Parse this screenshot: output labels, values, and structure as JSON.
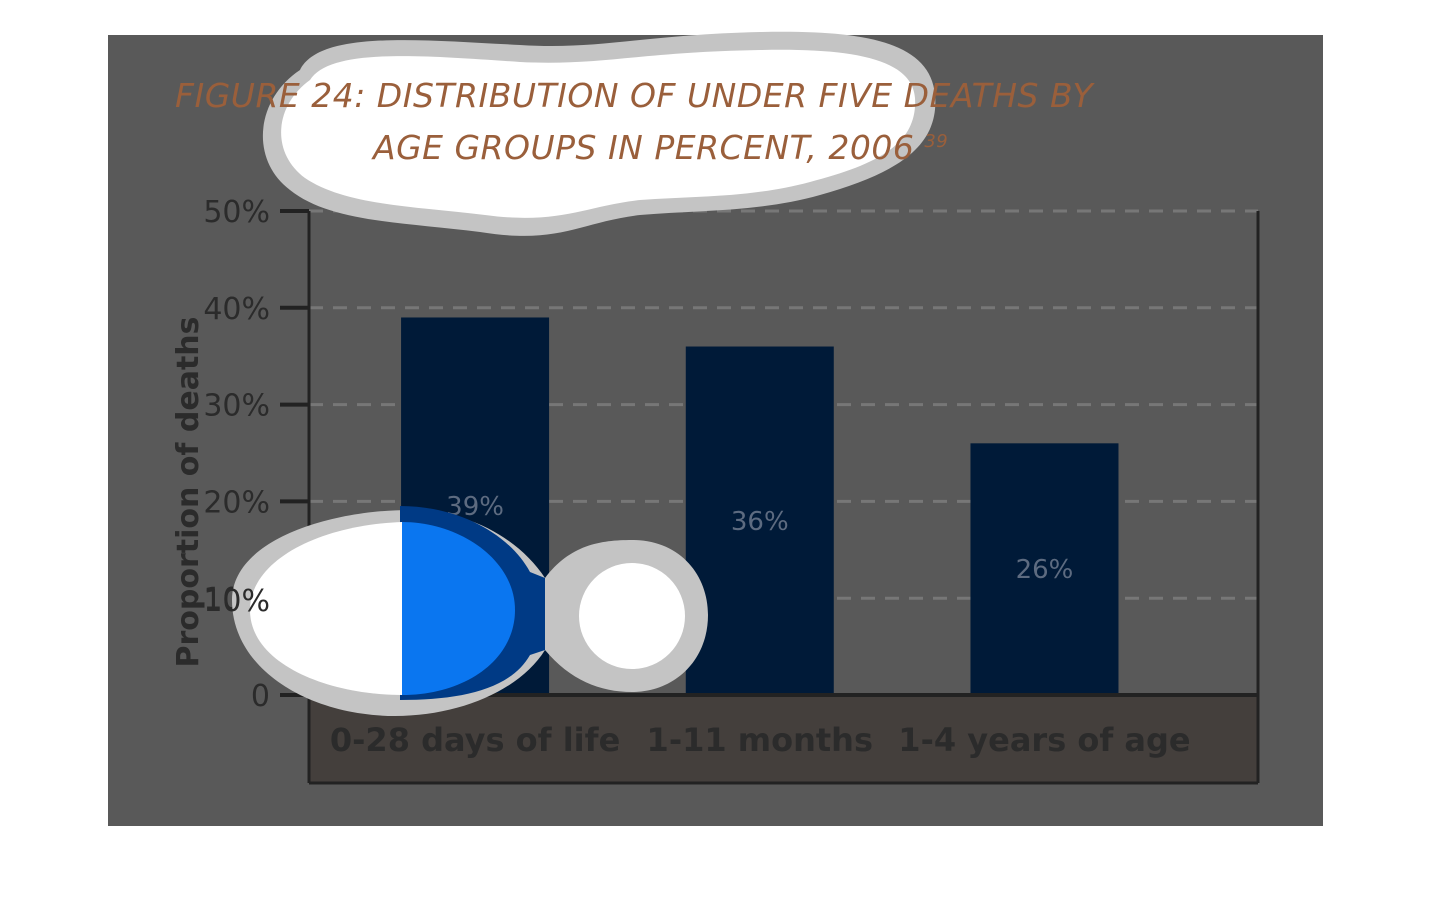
{
  "colors": {
    "panel": "#595959",
    "bar": "#001a38",
    "axis_band": "#443f3c",
    "title": "#9a5f3b",
    "gridline": "#777777",
    "blob_white": "#ffffff",
    "blob_halo": "#c4c4c4",
    "highlight_blue": "#0a76f0",
    "highlight_dark": "#003a85"
  },
  "chart_data": {
    "type": "bar",
    "title_line1": "FIGURE 24: DISTRIBUTION OF UNDER FIVE DEATHS BY",
    "title_line2": "AGE GROUPS IN PERCENT, 2006",
    "title_superscript": "39",
    "ylabel": "Proportion of deaths",
    "xlabel": "",
    "ylim": [
      0,
      50
    ],
    "yticks": [
      {
        "value": 0,
        "label": "0"
      },
      {
        "value": 10,
        "label": "10%"
      },
      {
        "value": 20,
        "label": "20%"
      },
      {
        "value": 30,
        "label": "30%"
      },
      {
        "value": 40,
        "label": "40%"
      },
      {
        "value": 50,
        "label": "50%"
      }
    ],
    "grid": true,
    "categories": [
      "0-28 days of life",
      "1-11 months",
      "1-4 years of age"
    ],
    "values": [
      39,
      36,
      26
    ],
    "data_labels": [
      "39%",
      "36%",
      "26%"
    ]
  }
}
